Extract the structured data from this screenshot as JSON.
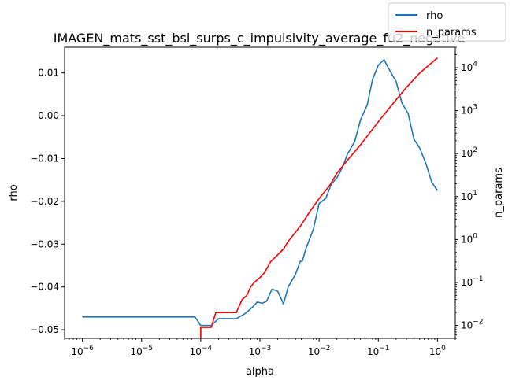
{
  "chart_data": {
    "type": "line",
    "title": "IMAGEN_mats_sst_bsl_surps_c_impulsivity_average_fu2_negative",
    "xlabel": "alpha",
    "ylabel_left": "rho",
    "ylabel_right": "n_params",
    "x_scale": "log",
    "x_lim": [
      5e-07,
      2
    ],
    "x_ticks": [
      {
        "value": 1e-06,
        "base": "10",
        "exp": "−6"
      },
      {
        "value": 1e-05,
        "base": "10",
        "exp": "−5"
      },
      {
        "value": 0.0001,
        "base": "10",
        "exp": "−4"
      },
      {
        "value": 0.001,
        "base": "10",
        "exp": "−3"
      },
      {
        "value": 0.01,
        "base": "10",
        "exp": "−2"
      },
      {
        "value": 0.1,
        "base": "10",
        "exp": "−1"
      },
      {
        "value": 1,
        "base": "10",
        "exp": "0"
      }
    ],
    "y_left_lim": [
      -0.052,
      0.016
    ],
    "y_left_ticks": [
      {
        "value": 0.01,
        "label": "0.01"
      },
      {
        "value": 0.0,
        "label": "0.00"
      },
      {
        "value": -0.01,
        "label": "−0.01"
      },
      {
        "value": -0.02,
        "label": "−0.02"
      },
      {
        "value": -0.03,
        "label": "−0.03"
      },
      {
        "value": -0.04,
        "label": "−0.04"
      },
      {
        "value": -0.05,
        "label": "−0.05"
      }
    ],
    "y_right_scale": "log",
    "y_right_lim": [
      0.005,
      30000
    ],
    "y_right_ticks": [
      {
        "value": 0.01,
        "base": "10",
        "exp": "−2"
      },
      {
        "value": 0.1,
        "base": "10",
        "exp": "−1"
      },
      {
        "value": 1,
        "base": "10",
        "exp": "0"
      },
      {
        "value": 10,
        "base": "10",
        "exp": "1"
      },
      {
        "value": 100,
        "base": "10",
        "exp": "2"
      },
      {
        "value": 1000,
        "base": "10",
        "exp": "3"
      },
      {
        "value": 10000,
        "base": "10",
        "exp": "4"
      }
    ],
    "legend_position": "top-right",
    "series": [
      {
        "name": "rho",
        "axis": "left",
        "color": "#1f77b4",
        "points": [
          [
            1e-06,
            -0.047
          ],
          [
            1e-05,
            -0.047
          ],
          [
            5e-05,
            -0.047
          ],
          [
            8e-05,
            -0.047
          ],
          [
            0.0001,
            -0.049
          ],
          [
            0.00015,
            -0.049
          ],
          [
            0.0002,
            -0.0474
          ],
          [
            0.0003,
            -0.0474
          ],
          [
            0.0004,
            -0.0474
          ],
          [
            0.00055,
            -0.0463
          ],
          [
            0.00065,
            -0.0455
          ],
          [
            0.0008,
            -0.0443
          ],
          [
            0.0009,
            -0.0435
          ],
          [
            0.0011,
            -0.0438
          ],
          [
            0.0013,
            -0.0433
          ],
          [
            0.0016,
            -0.0405
          ],
          [
            0.002,
            -0.041
          ],
          [
            0.0025,
            -0.044
          ],
          [
            0.003,
            -0.04
          ],
          [
            0.004,
            -0.037
          ],
          [
            0.0048,
            -0.034
          ],
          [
            0.0052,
            -0.034
          ],
          [
            0.006,
            -0.031
          ],
          [
            0.008,
            -0.0265
          ],
          [
            0.01,
            -0.0205
          ],
          [
            0.013,
            -0.0193
          ],
          [
            0.016,
            -0.016
          ],
          [
            0.02,
            -0.0145
          ],
          [
            0.025,
            -0.012
          ],
          [
            0.03,
            -0.009
          ],
          [
            0.04,
            -0.006
          ],
          [
            0.05,
            -0.001
          ],
          [
            0.065,
            0.0025
          ],
          [
            0.08,
            0.0085
          ],
          [
            0.1,
            0.0118
          ],
          [
            0.125,
            0.0131
          ],
          [
            0.15,
            0.011
          ],
          [
            0.2,
            0.008
          ],
          [
            0.25,
            0.003
          ],
          [
            0.32,
            0.0005
          ],
          [
            0.4,
            -0.0055
          ],
          [
            0.5,
            -0.0075
          ],
          [
            0.63,
            -0.011
          ],
          [
            0.8,
            -0.0155
          ],
          [
            1.0,
            -0.0175
          ]
        ]
      },
      {
        "name": "n_params",
        "axis": "right",
        "color": "#ff0000",
        "points": [
          [
            0.0001,
            0.005
          ],
          [
            0.0001,
            0.009
          ],
          [
            0.00015,
            0.009
          ],
          [
            0.00018,
            0.02
          ],
          [
            0.00025,
            0.02
          ],
          [
            0.0004,
            0.02
          ],
          [
            0.0005,
            0.04
          ],
          [
            0.0006,
            0.05
          ],
          [
            0.0007,
            0.08
          ],
          [
            0.0008,
            0.1
          ],
          [
            0.001,
            0.13
          ],
          [
            0.0012,
            0.17
          ],
          [
            0.0015,
            0.3
          ],
          [
            0.0025,
            0.6
          ],
          [
            0.003,
            0.9
          ],
          [
            0.005,
            2.2
          ],
          [
            0.007,
            4.5
          ],
          [
            0.01,
            9
          ],
          [
            0.015,
            18
          ],
          [
            0.02,
            35
          ],
          [
            0.03,
            70
          ],
          [
            0.05,
            160
          ],
          [
            0.1,
            550
          ],
          [
            0.2,
            1800
          ],
          [
            0.3,
            3500
          ],
          [
            0.5,
            7500
          ],
          [
            1.0,
            17000
          ]
        ]
      }
    ]
  }
}
